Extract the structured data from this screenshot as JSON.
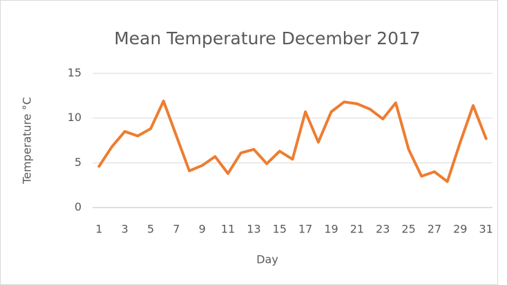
{
  "chart_data": {
    "type": "line",
    "title": "Mean Temperature December 2017",
    "x_label": "Day",
    "y_label": "Temperature °C",
    "x": [
      1,
      2,
      3,
      4,
      5,
      6,
      7,
      8,
      9,
      10,
      11,
      12,
      13,
      14,
      15,
      16,
      17,
      18,
      19,
      20,
      21,
      22,
      23,
      24,
      25,
      26,
      27,
      28,
      29,
      30,
      31
    ],
    "series": [
      {
        "name": "Mean Temperature",
        "color": "#ed7d31",
        "values": [
          4.6,
          6.8,
          8.5,
          8.0,
          8.8,
          11.9,
          8.0,
          4.1,
          4.7,
          5.7,
          3.8,
          6.1,
          6.5,
          4.9,
          6.3,
          5.4,
          10.7,
          7.3,
          10.7,
          11.8,
          11.6,
          11.0,
          9.9,
          11.7,
          6.5,
          3.5,
          4.0,
          2.9,
          7.3,
          11.4,
          7.7
        ]
      }
    ],
    "xlim": [
      0.5,
      31.5
    ],
    "xticks": [
      1,
      3,
      5,
      7,
      9,
      11,
      13,
      15,
      17,
      19,
      21,
      23,
      25,
      27,
      29,
      31
    ],
    "ylim": [
      0,
      15
    ],
    "yticks": [
      0,
      5,
      10,
      15
    ],
    "grid": true
  }
}
